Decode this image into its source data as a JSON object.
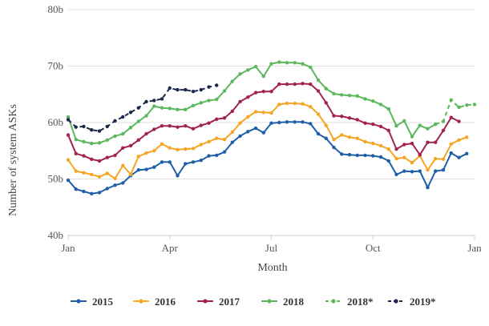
{
  "chart_data": {
    "type": "line",
    "xlabel": "Month",
    "ylabel": "Number of system ASKs",
    "x_tick_labels": [
      "Jan",
      "Apr",
      "Jul",
      "Oct",
      "Jan"
    ],
    "y_tick_labels": [
      "40b",
      "50b",
      "60b",
      "70b",
      "80b"
    ],
    "ylim": [
      40,
      80
    ],
    "xlim": [
      1,
      53
    ],
    "x_ticks": [
      1,
      14,
      27,
      40,
      53
    ],
    "y_ticks": [
      40,
      50,
      60,
      70,
      80
    ],
    "grid": "horizontal",
    "legend_position": "bottom",
    "series": [
      {
        "name": "2015",
        "color": "#1f5fa8",
        "dashed": false,
        "x": [
          1,
          2,
          3,
          4,
          5,
          6,
          7,
          8,
          9,
          10,
          11,
          12,
          13,
          14,
          15,
          16,
          17,
          18,
          19,
          20,
          21,
          22,
          23,
          24,
          25,
          26,
          27,
          28,
          29,
          30,
          31,
          32,
          33,
          34,
          35,
          36,
          37,
          38,
          39,
          40,
          41,
          42,
          43,
          44,
          45,
          46,
          47,
          48,
          49,
          50,
          51,
          52
        ],
        "values": [
          49.8,
          48.2,
          47.8,
          47.4,
          47.6,
          48.3,
          48.9,
          49.3,
          50.6,
          51.6,
          51.7,
          52.1,
          53.0,
          53.0,
          50.6,
          52.7,
          53.0,
          53.3,
          54.1,
          54.2,
          54.8,
          56.5,
          57.6,
          58.4,
          59.0,
          58.2,
          59.9,
          60.0,
          60.1,
          60.1,
          60.1,
          59.8,
          58.0,
          57.2,
          55.6,
          54.4,
          54.3,
          54.2,
          54.2,
          54.1,
          53.9,
          53.2,
          50.8,
          51.4,
          51.3,
          51.4,
          48.5,
          51.4,
          51.6,
          54.6,
          53.8,
          54.5
        ]
      },
      {
        "name": "2016",
        "color": "#f5a623",
        "dashed": false,
        "x": [
          1,
          2,
          3,
          4,
          5,
          6,
          7,
          8,
          9,
          10,
          11,
          12,
          13,
          14,
          15,
          16,
          17,
          18,
          19,
          20,
          21,
          22,
          23,
          24,
          25,
          26,
          27,
          28,
          29,
          30,
          31,
          32,
          33,
          34,
          35,
          36,
          37,
          38,
          39,
          40,
          41,
          42,
          43,
          44,
          45,
          46,
          47,
          48,
          49,
          50,
          51,
          52
        ],
        "values": [
          53.4,
          51.4,
          51.1,
          50.8,
          50.4,
          51.0,
          50.1,
          52.4,
          50.8,
          54.0,
          54.6,
          55.0,
          56.2,
          55.5,
          55.2,
          55.3,
          55.4,
          56.1,
          56.6,
          57.2,
          57.0,
          58.3,
          59.9,
          61.0,
          61.9,
          61.8,
          61.7,
          63.2,
          63.4,
          63.4,
          63.3,
          62.8,
          61.5,
          59.5,
          57.0,
          57.8,
          57.4,
          57.2,
          56.6,
          56.3,
          55.9,
          55.3,
          53.6,
          53.8,
          52.9,
          54.1,
          51.6,
          53.6,
          53.5,
          56.2,
          56.9,
          57.4
        ]
      },
      {
        "name": "2017",
        "color": "#a3234a",
        "dashed": false,
        "x": [
          1,
          2,
          3,
          4,
          5,
          6,
          7,
          8,
          9,
          10,
          11,
          12,
          13,
          14,
          15,
          16,
          17,
          18,
          19,
          20,
          21,
          22,
          23,
          24,
          25,
          26,
          27,
          28,
          29,
          30,
          31,
          32,
          33,
          34,
          35,
          36,
          37,
          38,
          39,
          40,
          41,
          42,
          43,
          44,
          45,
          46,
          47,
          48,
          49,
          50,
          51,
          52
        ],
        "values": [
          57.8,
          54.5,
          54.1,
          53.5,
          53.2,
          53.8,
          54.2,
          55.5,
          55.9,
          56.9,
          58.0,
          58.8,
          59.4,
          59.4,
          59.2,
          59.4,
          58.9,
          59.5,
          59.9,
          60.6,
          60.8,
          62.0,
          63.7,
          64.5,
          65.3,
          65.5,
          65.5,
          66.8,
          66.8,
          66.8,
          66.9,
          66.8,
          65.6,
          63.5,
          61.2,
          61.1,
          60.8,
          60.5,
          59.9,
          59.7,
          59.3,
          58.6,
          55.3,
          56.1,
          56.3,
          54.3,
          56.5,
          56.5,
          58.6,
          60.9,
          60.2,
          null
        ]
      },
      {
        "name": "2018",
        "color": "#5cb85c",
        "dashed": false,
        "x": [
          1,
          2,
          3,
          4,
          5,
          6,
          7,
          8,
          9,
          10,
          11,
          12,
          13,
          14,
          15,
          16,
          17,
          18,
          19,
          20,
          21,
          22,
          23,
          24,
          25,
          26,
          27,
          28,
          29,
          30,
          31,
          32,
          33,
          34,
          35,
          36,
          37,
          38,
          39,
          40,
          41,
          42,
          43,
          44,
          45,
          46,
          47,
          48,
          49,
          50
        ],
        "values": [
          61.0,
          57.0,
          56.6,
          56.3,
          56.4,
          56.9,
          57.6,
          58.0,
          59.1,
          60.2,
          61.2,
          62.9,
          62.6,
          62.5,
          62.3,
          62.3,
          63.0,
          63.5,
          63.9,
          64.1,
          65.6,
          67.3,
          68.6,
          69.3,
          69.9,
          68.2,
          70.4,
          70.7,
          70.6,
          70.6,
          70.4,
          69.8,
          67.5,
          66.0,
          65.1,
          64.9,
          64.8,
          64.7,
          64.2,
          63.8,
          63.2,
          62.4,
          59.4,
          60.3,
          57.5,
          59.5,
          58.9,
          59.7,
          null,
          null
        ]
      },
      {
        "name": "2018*",
        "color": "#5cb85c",
        "dashed": true,
        "x": [
          48,
          49,
          50,
          51,
          52,
          53
        ],
        "values": [
          59.7,
          60.2,
          64.0,
          62.7,
          63.1,
          63.2
        ]
      },
      {
        "name": "2019*",
        "color": "#1b2a4a",
        "dashed": true,
        "x": [
          1,
          2,
          3,
          4,
          5,
          6,
          7,
          8,
          9,
          10,
          11,
          12,
          13,
          14,
          15,
          16,
          17,
          18,
          19,
          20
        ],
        "values": [
          60.5,
          59.2,
          59.3,
          58.7,
          58.5,
          59.3,
          60.3,
          61.0,
          61.8,
          62.6,
          63.7,
          63.9,
          64.2,
          66.1,
          65.8,
          65.8,
          65.5,
          65.8,
          66.3,
          66.6
        ]
      }
    ]
  }
}
